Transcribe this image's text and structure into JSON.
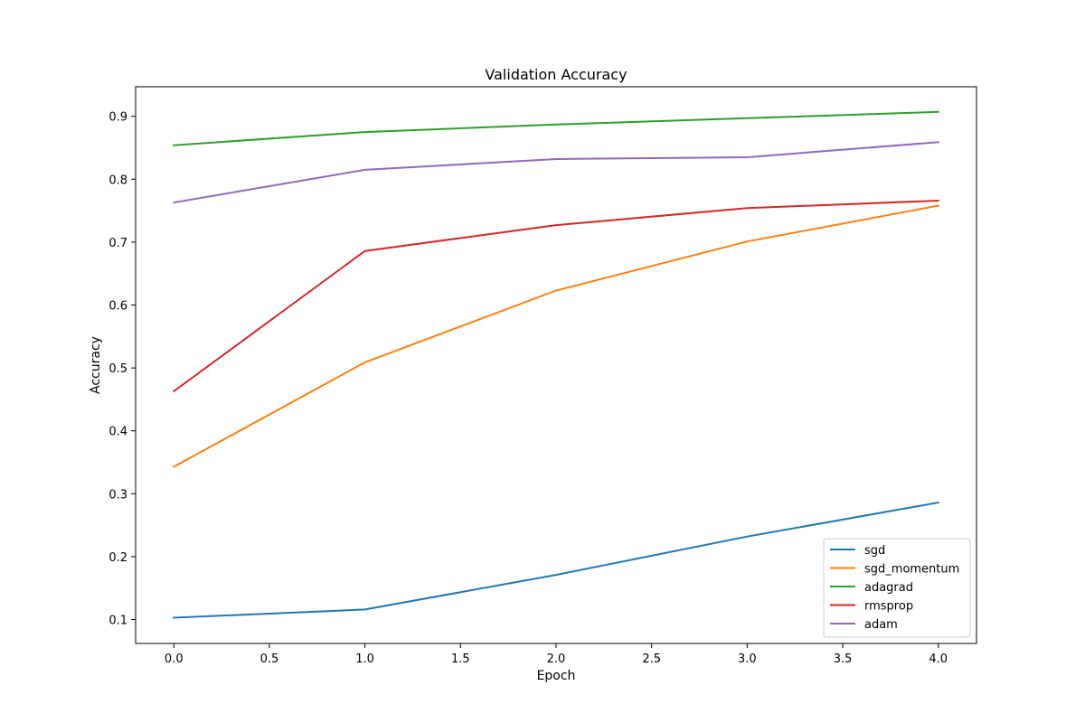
{
  "chart_data": {
    "type": "line",
    "title": "Validation Accuracy",
    "xlabel": "Epoch",
    "ylabel": "Accuracy",
    "x": [
      0,
      1,
      2,
      3,
      4
    ],
    "xlim": [
      -0.2,
      4.2
    ],
    "ylim": [
      0.062,
      0.947
    ],
    "xticks": [
      0.0,
      0.5,
      1.0,
      1.5,
      2.0,
      2.5,
      3.0,
      3.5,
      4.0
    ],
    "xtick_labels": [
      "0.0",
      "0.5",
      "1.0",
      "1.5",
      "2.0",
      "2.5",
      "3.0",
      "3.5",
      "4.0"
    ],
    "yticks": [
      0.1,
      0.2,
      0.3,
      0.4,
      0.5,
      0.6,
      0.7,
      0.8,
      0.9
    ],
    "ytick_labels": [
      "0.1",
      "0.2",
      "0.3",
      "0.4",
      "0.5",
      "0.6",
      "0.7",
      "0.8",
      "0.9"
    ],
    "grid": false,
    "legend_position": "lower-right",
    "series": [
      {
        "name": "sgd",
        "color": "#1f77b4",
        "values": [
          0.103,
          0.116,
          0.171,
          0.232,
          0.286
        ]
      },
      {
        "name": "sgd_momentum",
        "color": "#ff7f0e",
        "values": [
          0.343,
          0.509,
          0.623,
          0.701,
          0.758
        ]
      },
      {
        "name": "adagrad",
        "color": "#2ca02c",
        "values": [
          0.854,
          0.875,
          0.887,
          0.897,
          0.907
        ]
      },
      {
        "name": "rmsprop",
        "color": "#d62728",
        "values": [
          0.463,
          0.686,
          0.727,
          0.754,
          0.766
        ]
      },
      {
        "name": "adam",
        "color": "#9467bd",
        "values": [
          0.763,
          0.815,
          0.832,
          0.835,
          0.859
        ]
      }
    ]
  }
}
